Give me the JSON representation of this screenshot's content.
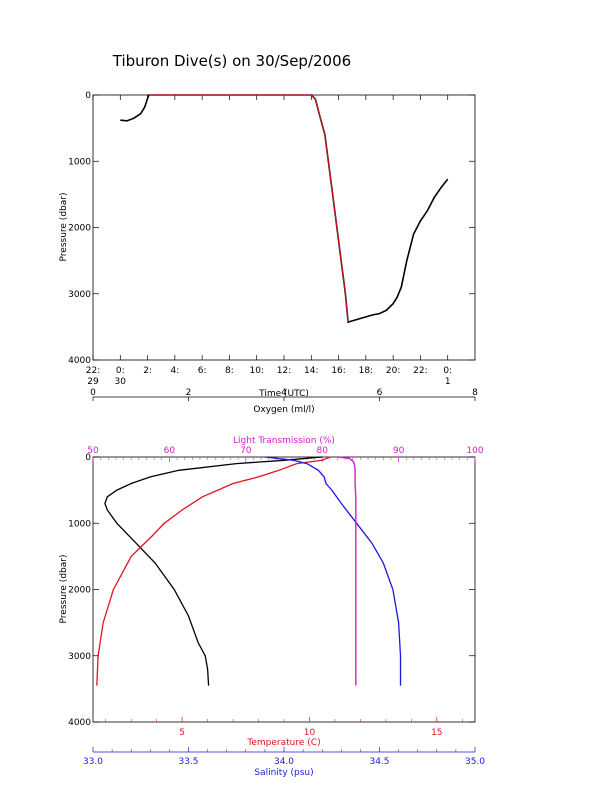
{
  "title": "Tiburon Dive(s) on 30/Sep/2006",
  "colors": {
    "black": "#000000",
    "red": "#e0141e",
    "blue": "#1a1adc",
    "magenta": "#d21ec8"
  },
  "chart_data": [
    {
      "type": "line",
      "name": "pressure-vs-time",
      "xlabel": "Time (UTC)",
      "ylabel": "Pressure (dbar)",
      "xlim": [
        -2,
        26
      ],
      "ylim": [
        4000,
        0
      ],
      "x_ticks": [
        {
          "v": -2,
          "top": "22:",
          "bottom": "29"
        },
        {
          "v": 0,
          "top": "0:",
          "bottom": "30"
        },
        {
          "v": 2,
          "top": "2:",
          "bottom": ""
        },
        {
          "v": 4,
          "top": "4:",
          "bottom": ""
        },
        {
          "v": 6,
          "top": "6:",
          "bottom": ""
        },
        {
          "v": 8,
          "top": "8:",
          "bottom": ""
        },
        {
          "v": 10,
          "top": "10:",
          "bottom": ""
        },
        {
          "v": 12,
          "top": "12:",
          "bottom": ""
        },
        {
          "v": 14,
          "top": "14:",
          "bottom": ""
        },
        {
          "v": 16,
          "top": "16:",
          "bottom": ""
        },
        {
          "v": 18,
          "top": "18:",
          "bottom": ""
        },
        {
          "v": 20,
          "top": "20:",
          "bottom": ""
        },
        {
          "v": 22,
          "top": "22:",
          "bottom": ""
        },
        {
          "v": 24,
          "top": "0:",
          "bottom": "1"
        }
      ],
      "y_ticks": [
        0,
        1000,
        2000,
        3000,
        4000
      ],
      "series": [
        {
          "color": "black",
          "x": [
            0.0,
            0.5,
            1.0,
            1.5,
            1.8,
            2.0,
            2.1,
            14.0,
            14.3,
            14.6,
            15.0,
            15.5,
            16.0,
            16.5,
            16.7,
            17.0,
            17.5,
            18.0,
            18.5,
            19.0,
            19.5,
            20.0,
            20.3,
            20.6,
            21.0,
            21.5,
            22.0,
            22.5,
            23.0,
            23.5,
            24.0
          ],
          "y": [
            380,
            390,
            350,
            280,
            180,
            50,
            0,
            0,
            60,
            300,
            600,
            1400,
            2200,
            3000,
            3430,
            3410,
            3380,
            3350,
            3320,
            3300,
            3250,
            3150,
            3050,
            2900,
            2500,
            2100,
            1900,
            1750,
            1550,
            1400,
            1270
          ]
        },
        {
          "color": "red",
          "x": [
            2.1,
            14.0,
            14.3,
            14.6,
            15.0,
            15.5,
            16.0,
            16.5,
            16.7
          ],
          "y": [
            0,
            0,
            60,
            300,
            600,
            1400,
            2200,
            3000,
            3430
          ]
        }
      ]
    },
    {
      "type": "line",
      "name": "profiles-vs-pressure",
      "ylabel": "Pressure (dbar)",
      "ylim": [
        4000,
        0
      ],
      "y_ticks": [
        0,
        1000,
        2000,
        3000,
        4000
      ],
      "axes": {
        "oxygen": {
          "label": "Oxygen (ml/l)",
          "lim": [
            0,
            8
          ],
          "ticks": [
            0,
            2,
            4,
            6,
            8
          ],
          "color": "black"
        },
        "light_transmission": {
          "label": "Light Transmission (%)",
          "lim": [
            50,
            100
          ],
          "ticks": [
            50,
            60,
            70,
            80,
            90,
            100
          ],
          "color": "magenta"
        },
        "temperature": {
          "label": "Temperature (C)",
          "lim": [
            1.5,
            16.5
          ],
          "ticks": [
            5,
            10,
            15
          ],
          "color": "red"
        },
        "salinity": {
          "label": "Salinity (psu)",
          "lim": [
            33.0,
            35.0
          ],
          "ticks": [
            "33.0",
            "33.5",
            "34.0",
            "34.5",
            "35.0"
          ],
          "color": "blue"
        }
      },
      "series": [
        {
          "color": "black",
          "axis": "oxygen",
          "pressure": [
            0,
            50,
            100,
            200,
            300,
            400,
            500,
            600,
            700,
            800,
            1000,
            1300,
            1600,
            2000,
            2400,
            2800,
            3000,
            3200,
            3450
          ],
          "values": [
            4.8,
            4.0,
            3.0,
            1.8,
            1.2,
            0.8,
            0.5,
            0.3,
            0.25,
            0.3,
            0.5,
            0.9,
            1.3,
            1.7,
            2.0,
            2.2,
            2.35,
            2.4,
            2.42
          ]
        },
        {
          "color": "red",
          "axis": "temperature",
          "pressure": [
            0,
            50,
            100,
            200,
            300,
            400,
            600,
            800,
            1000,
            1200,
            1500,
            2000,
            2500,
            3000,
            3450
          ],
          "values": [
            10.8,
            10.5,
            9.5,
            8.8,
            8.0,
            7.0,
            5.8,
            5.0,
            4.3,
            3.8,
            3.0,
            2.3,
            1.9,
            1.7,
            1.65
          ]
        },
        {
          "color": "blue",
          "axis": "salinity",
          "pressure": [
            0,
            50,
            100,
            200,
            300,
            400,
            500,
            700,
            1000,
            1300,
            1600,
            2000,
            2500,
            3000,
            3450
          ],
          "values": [
            33.9,
            34.05,
            34.12,
            34.18,
            34.21,
            34.22,
            34.25,
            34.3,
            34.38,
            34.46,
            34.52,
            34.57,
            34.6,
            34.61,
            34.61
          ]
        },
        {
          "color": "magenta",
          "axis": "light_transmission",
          "pressure": [
            0,
            20,
            60,
            100,
            200,
            400,
            600,
            1000,
            1500,
            2000,
            3000,
            3450
          ],
          "values": [
            82.0,
            83.5,
            84.0,
            84.2,
            84.3,
            84.3,
            84.4,
            84.4,
            84.4,
            84.4,
            84.4,
            84.4
          ]
        }
      ]
    }
  ]
}
